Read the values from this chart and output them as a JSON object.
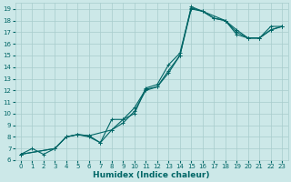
{
  "xlabel": "Humidex (Indice chaleur)",
  "bg_color": "#cce8e8",
  "grid_color": "#a8cccc",
  "line_color": "#006666",
  "xlim": [
    -0.5,
    23.5
  ],
  "ylim": [
    6,
    19.5
  ],
  "yticks": [
    6,
    7,
    8,
    9,
    10,
    11,
    12,
    13,
    14,
    15,
    16,
    17,
    18,
    19
  ],
  "xticks": [
    0,
    1,
    2,
    3,
    4,
    5,
    6,
    7,
    8,
    9,
    10,
    11,
    12,
    13,
    14,
    15,
    16,
    17,
    18,
    19,
    20,
    21,
    22,
    23
  ],
  "line1_x": [
    0,
    1,
    2,
    3,
    4,
    5,
    6,
    7,
    8,
    9,
    10,
    11,
    12,
    13,
    14,
    15,
    16,
    17,
    18,
    19,
    20,
    21,
    22,
    23
  ],
  "line1_y": [
    6.5,
    7.0,
    6.5,
    7.0,
    8.0,
    8.2,
    8.0,
    7.5,
    9.5,
    9.5,
    10.0,
    12.2,
    12.5,
    14.2,
    15.2,
    19.1,
    18.8,
    18.2,
    18.0,
    17.2,
    16.5,
    16.5,
    17.5,
    17.5
  ],
  "line2_x": [
    0,
    3,
    4,
    5,
    6,
    8,
    9,
    10,
    11,
    12,
    13,
    14,
    15,
    18,
    19,
    20,
    21,
    22,
    23
  ],
  "line2_y": [
    6.5,
    7.0,
    8.0,
    8.2,
    8.1,
    8.6,
    9.5,
    10.5,
    12.1,
    12.3,
    13.7,
    15.0,
    19.2,
    18.0,
    16.8,
    16.5,
    16.5,
    17.2,
    17.5
  ],
  "line3_x": [
    0,
    3,
    4,
    5,
    6,
    7,
    8,
    9,
    10,
    11,
    12,
    13,
    14,
    15,
    16,
    17,
    18,
    19,
    20,
    21,
    22,
    23
  ],
  "line3_y": [
    6.5,
    7.0,
    8.0,
    8.2,
    8.1,
    7.5,
    8.6,
    9.2,
    10.2,
    12.0,
    12.3,
    13.5,
    15.0,
    19.0,
    18.8,
    18.2,
    18.0,
    17.0,
    16.5,
    16.5,
    17.2,
    17.5
  ]
}
